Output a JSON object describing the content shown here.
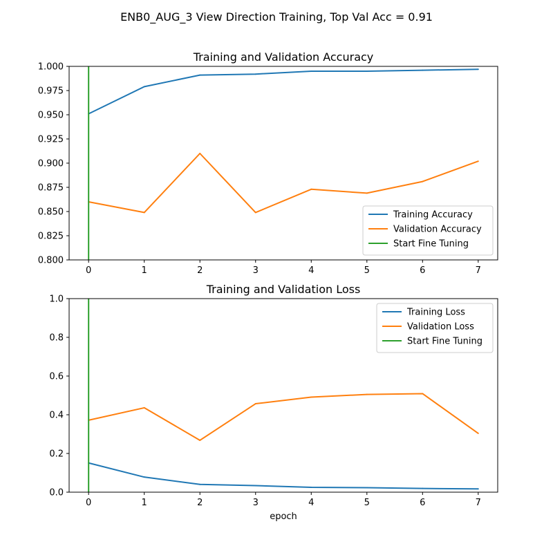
{
  "figure": {
    "title": "ENB0_AUG_3 View Direction Training, Top Val Acc = 0.91"
  },
  "colors": {
    "training": "#1f77b4",
    "validation": "#ff7f0e",
    "fine_tuning": "#2ca02c"
  },
  "chart_data": [
    {
      "type": "line",
      "title": "Training and Validation Accuracy",
      "xlabel": "",
      "ylabel": "",
      "x": [
        0,
        1,
        2,
        3,
        4,
        5,
        6,
        7
      ],
      "xlim": [
        -0.35,
        7.35
      ],
      "ylim": [
        0.8,
        1.0
      ],
      "xticks": [
        "0",
        "1",
        "2",
        "3",
        "4",
        "5",
        "6",
        "7"
      ],
      "yticks": [
        "0.800",
        "0.825",
        "0.850",
        "0.875",
        "0.900",
        "0.925",
        "0.950",
        "0.975",
        "1.000"
      ],
      "ytick_values": [
        0.8,
        0.825,
        0.85,
        0.875,
        0.9,
        0.925,
        0.95,
        0.975,
        1.0
      ],
      "series": [
        {
          "name": "Training Accuracy",
          "color": "#1f77b4",
          "values": [
            0.951,
            0.979,
            0.991,
            0.992,
            0.995,
            0.995,
            0.996,
            0.997
          ]
        },
        {
          "name": "Validation Accuracy",
          "color": "#ff7f0e",
          "values": [
            0.86,
            0.849,
            0.91,
            0.849,
            0.873,
            0.869,
            0.881,
            0.902
          ]
        }
      ],
      "vline": {
        "name": "Start Fine Tuning",
        "color": "#2ca02c",
        "x": 0
      },
      "legend": "lower right",
      "grid": false
    },
    {
      "type": "line",
      "title": "Training and Validation Loss",
      "xlabel": "epoch",
      "ylabel": "",
      "x": [
        0,
        1,
        2,
        3,
        4,
        5,
        6,
        7
      ],
      "xlim": [
        -0.35,
        7.35
      ],
      "ylim": [
        0.0,
        1.0
      ],
      "xticks": [
        "0",
        "1",
        "2",
        "3",
        "4",
        "5",
        "6",
        "7"
      ],
      "yticks": [
        "0.0",
        "0.2",
        "0.4",
        "0.6",
        "0.8",
        "1.0"
      ],
      "ytick_values": [
        0.0,
        0.2,
        0.4,
        0.6,
        0.8,
        1.0
      ],
      "series": [
        {
          "name": "Training Loss",
          "color": "#1f77b4",
          "values": [
            0.151,
            0.078,
            0.04,
            0.034,
            0.025,
            0.023,
            0.019,
            0.017
          ]
        },
        {
          "name": "Validation Loss",
          "color": "#ff7f0e",
          "values": [
            0.372,
            0.436,
            0.268,
            0.457,
            0.491,
            0.505,
            0.509,
            0.304
          ]
        }
      ],
      "vline": {
        "name": "Start Fine Tuning",
        "color": "#2ca02c",
        "x": 0
      },
      "legend": "upper right",
      "grid": false
    }
  ]
}
